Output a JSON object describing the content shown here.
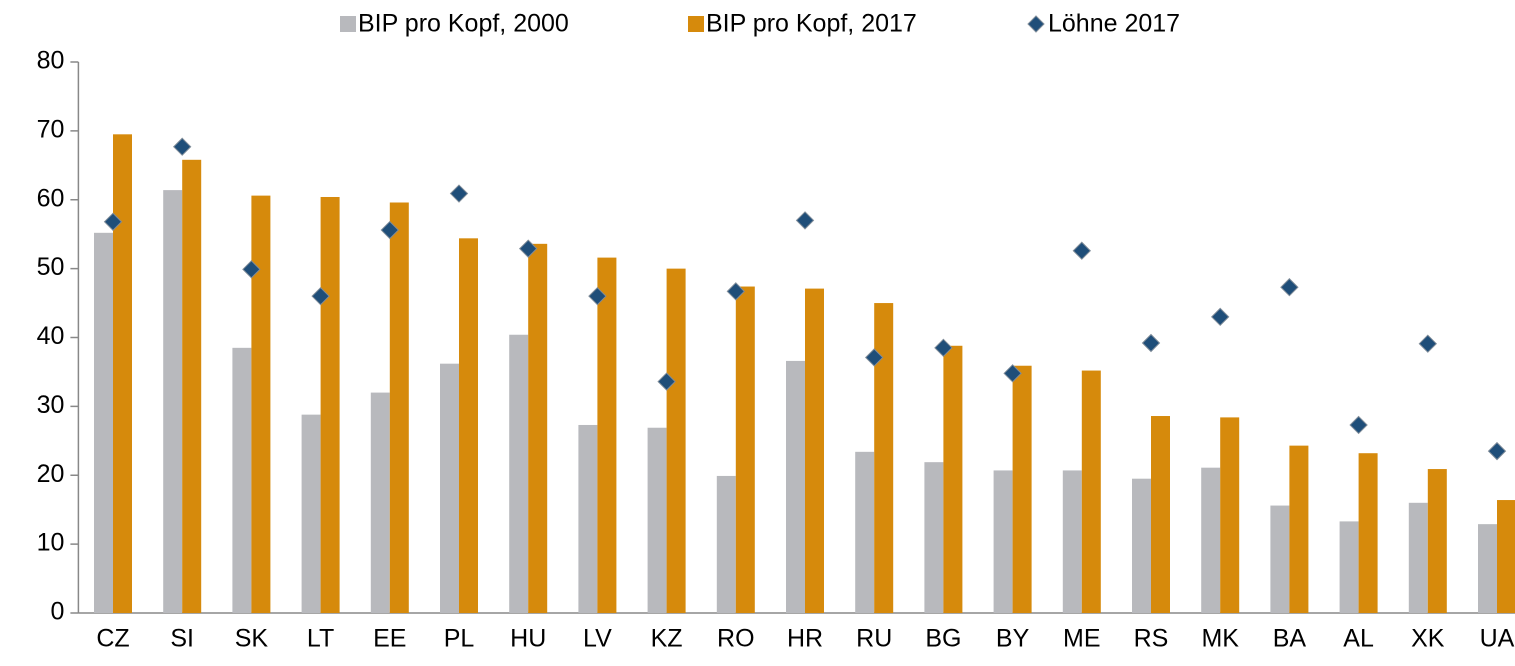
{
  "chart_data": {
    "type": "bar",
    "categories": [
      "CZ",
      "SI",
      "SK",
      "LT",
      "EE",
      "PL",
      "HU",
      "LV",
      "KZ",
      "RO",
      "HR",
      "RU",
      "BG",
      "BY",
      "ME",
      "RS",
      "MK",
      "BA",
      "AL",
      "XK",
      "UA"
    ],
    "series": [
      {
        "name": "BIP pro Kopf, 2000",
        "color": "#b8b9bd",
        "values": [
          55.2,
          61.4,
          38.5,
          28.8,
          32.0,
          36.2,
          40.4,
          27.3,
          26.9,
          19.9,
          36.6,
          23.4,
          21.9,
          20.7,
          20.7,
          19.5,
          21.1,
          15.6,
          13.3,
          16.0,
          12.9
        ]
      },
      {
        "name": "BIP pro Kopf, 2017",
        "color": "#d68a0c",
        "values": [
          69.5,
          65.8,
          60.6,
          60.4,
          59.6,
          54.4,
          53.6,
          51.6,
          50.0,
          47.4,
          47.1,
          45.0,
          38.8,
          35.9,
          35.2,
          28.6,
          28.4,
          24.3,
          23.2,
          20.9,
          16.4
        ]
      },
      {
        "name": "Löhne 2017",
        "color": "#1f4e79",
        "marker": "diamond",
        "values": [
          56.8,
          67.7,
          49.9,
          46.0,
          55.6,
          60.9,
          52.9,
          46.0,
          33.6,
          46.7,
          57.0,
          37.1,
          38.5,
          34.8,
          52.6,
          39.2,
          43.0,
          47.3,
          27.3,
          39.1,
          23.5
        ]
      }
    ],
    "ylim": [
      0,
      80
    ],
    "yticks": [
      0,
      10,
      20,
      30,
      40,
      50,
      60,
      70,
      80
    ]
  }
}
